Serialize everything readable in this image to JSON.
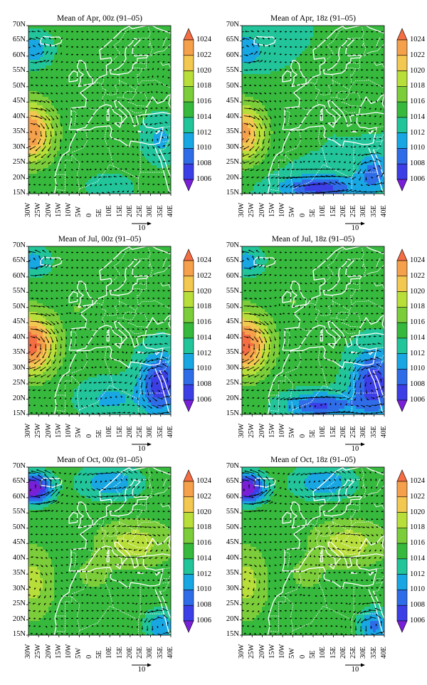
{
  "panels": [
    {
      "title": "Mean of Apr, 00z (91–05)",
      "month": "Apr",
      "hour": "00z"
    },
    {
      "title": "Mean of Apr, 18z (91–05)",
      "month": "Apr",
      "hour": "18z"
    },
    {
      "title": "Mean of Jul, 00z (91–05)",
      "month": "Jul",
      "hour": "00z"
    },
    {
      "title": "Mean of Jul, 18z (91–05)",
      "month": "Jul",
      "hour": "18z"
    },
    {
      "title": "Mean of Oct, 00z (91–05)",
      "month": "Oct",
      "hour": "00z"
    },
    {
      "title": "Mean of Oct, 18z (91–05)",
      "month": "Oct",
      "hour": "18z"
    }
  ],
  "lat_labels": [
    "70N",
    "65N",
    "60N",
    "55N",
    "50N",
    "45N",
    "40N",
    "35N",
    "30N",
    "25N",
    "20N",
    "15N"
  ],
  "lon_labels": [
    "30W",
    "25W",
    "20W",
    "15W",
    "10W",
    "5W",
    "0",
    "5E",
    "10E",
    "15E",
    "20E",
    "25E",
    "30E",
    "35E",
    "40E"
  ],
  "colorbar": {
    "levels": [
      "1024",
      "1022",
      "1020",
      "1018",
      "1016",
      "1014",
      "1012",
      "1010",
      "1008",
      "1006"
    ],
    "colors": [
      "#f46d43",
      "#f5a04a",
      "#f2c850",
      "#b8de3a",
      "#7ccd3a",
      "#36b93c",
      "#22c49a",
      "#18a7e2",
      "#2f6de8",
      "#3c3fe6",
      "#7a1fd8"
    ]
  },
  "reference_vector": {
    "value": "10"
  },
  "colors": {
    "coastline": "#ffffff",
    "arrow": "#000000"
  }
}
